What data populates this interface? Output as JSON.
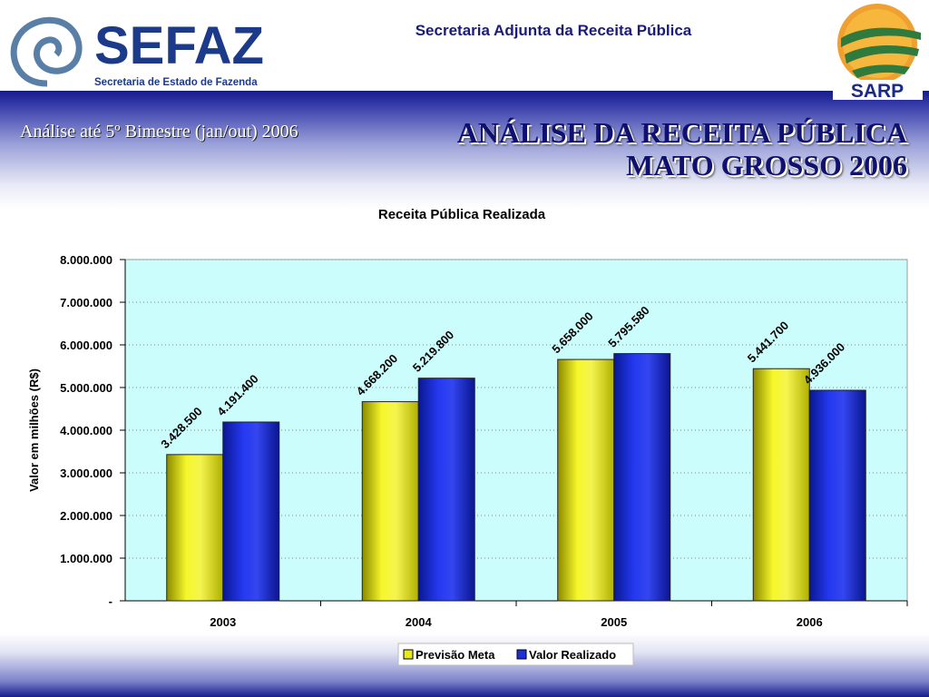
{
  "header": {
    "org_title": "Secretaria Adjunta da Receita Pública",
    "logo_left_name": "SEFAZ",
    "logo_left_sub": "Secretaria de Estado de Fazenda",
    "logo_right_name": "SARP"
  },
  "slide": {
    "subtitle": "Análise até 5º Bimestre (jan/out) 2006",
    "title_line1": "ANÁLISE DA RECEITA PÚBLICA",
    "title_line2": "MATO GROSSO 2006"
  },
  "colors": {
    "brand_blue": "#1b3a8a",
    "series1": "#e8e81c",
    "series2": "#1c2fd8",
    "plot_bg": "#ccfdfd"
  },
  "chart_data": {
    "type": "bar",
    "title": "Receita Pública Realizada",
    "ylabel": "Valor em milhões (R$)",
    "xlabel": "",
    "categories": [
      "2003",
      "2004",
      "2005",
      "2006"
    ],
    "series": [
      {
        "name": "Previsão Meta",
        "values": [
          3428500,
          4668200,
          5658000,
          5441700
        ],
        "labels": [
          "3.428.500",
          "4.668.200",
          "5.658.000",
          "5.441.700"
        ]
      },
      {
        "name": "Valor Realizado",
        "values": [
          4191400,
          5219800,
          5795580,
          4936000
        ],
        "labels": [
          "4.191.400",
          "5.219.800",
          "5.795.580",
          "4.936.000"
        ]
      }
    ],
    "ylim": [
      0,
      8000000
    ],
    "yticks": [
      "-",
      "1.000.000",
      "2.000.000",
      "3.000.000",
      "4.000.000",
      "5.000.000",
      "6.000.000",
      "7.000.000",
      "8.000.000"
    ],
    "grid": "horizontal dotted",
    "legend": "bottom"
  }
}
